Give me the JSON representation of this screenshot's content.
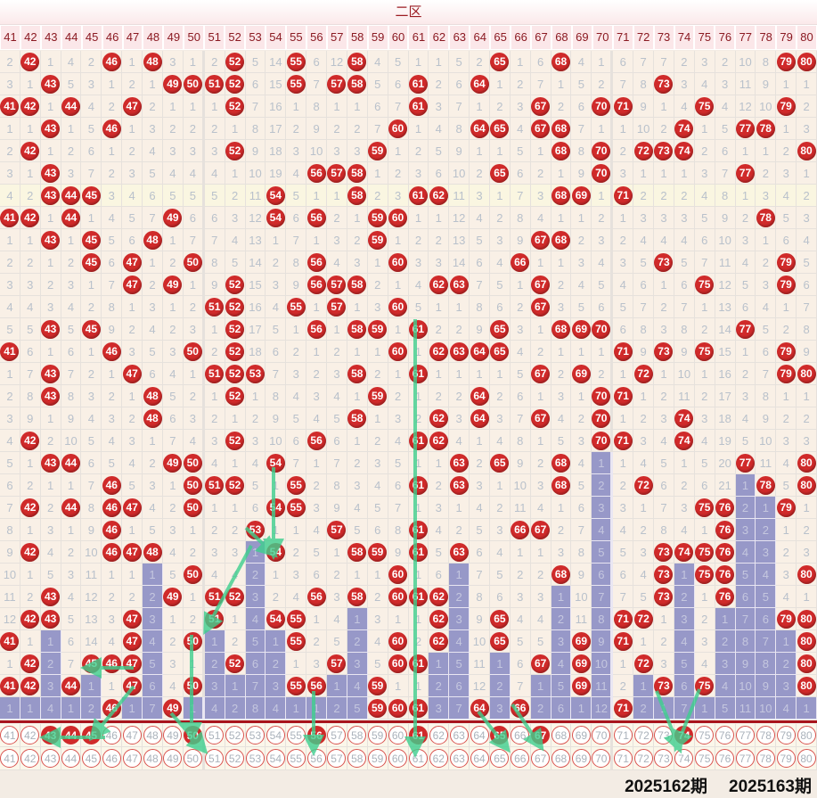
{
  "zone_title": "二区",
  "columns": [
    41,
    42,
    43,
    44,
    45,
    46,
    47,
    48,
    49,
    50,
    51,
    52,
    53,
    54,
    55,
    56,
    57,
    58,
    59,
    60,
    61,
    62,
    63,
    64,
    65,
    66,
    67,
    68,
    69,
    70,
    71,
    72,
    73,
    74,
    75,
    76,
    77,
    78,
    79,
    80
  ],
  "highlight_row": 7,
  "rows": [
    [
      2,
      42,
      1,
      4,
      2,
      46,
      1,
      48,
      3,
      1,
      2,
      52,
      5,
      14,
      55,
      6,
      12,
      58,
      4,
      5,
      1,
      1,
      5,
      2,
      65,
      1,
      6,
      68,
      4,
      1,
      6,
      7,
      7,
      2,
      3,
      2,
      10,
      8,
      79,
      80
    ],
    [
      3,
      1,
      43,
      5,
      3,
      1,
      2,
      1,
      49,
      50,
      51,
      52,
      6,
      15,
      55,
      7,
      57,
      58,
      5,
      6,
      61,
      2,
      6,
      64,
      1,
      2,
      7,
      1,
      5,
      2,
      7,
      8,
      73,
      3,
      4,
      3,
      11,
      9,
      1,
      1
    ],
    [
      41,
      42,
      1,
      44,
      4,
      2,
      47,
      2,
      1,
      1,
      1,
      52,
      7,
      16,
      1,
      8,
      1,
      1,
      6,
      7,
      61,
      3,
      7,
      1,
      2,
      3,
      67,
      2,
      6,
      70,
      71,
      9,
      1,
      4,
      75,
      4,
      12,
      10,
      79,
      2
    ],
    [
      1,
      1,
      43,
      1,
      5,
      46,
      1,
      3,
      2,
      2,
      2,
      1,
      8,
      17,
      2,
      9,
      2,
      2,
      7,
      60,
      1,
      4,
      8,
      64,
      65,
      4,
      67,
      68,
      7,
      1,
      1,
      10,
      2,
      74,
      1,
      5,
      77,
      78,
      1,
      3
    ],
    [
      2,
      42,
      1,
      2,
      6,
      1,
      2,
      4,
      3,
      3,
      3,
      52,
      9,
      18,
      3,
      10,
      3,
      3,
      59,
      1,
      2,
      5,
      9,
      1,
      1,
      5,
      1,
      68,
      8,
      70,
      2,
      72,
      73,
      74,
      2,
      6,
      1,
      1,
      2,
      80
    ],
    [
      3,
      1,
      43,
      3,
      7,
      2,
      3,
      5,
      4,
      4,
      4,
      1,
      10,
      19,
      4,
      56,
      57,
      58,
      1,
      2,
      3,
      6,
      10,
      2,
      65,
      6,
      2,
      1,
      9,
      70,
      3,
      1,
      1,
      1,
      3,
      7,
      77,
      2,
      3,
      1
    ],
    [
      4,
      2,
      43,
      44,
      45,
      3,
      4,
      6,
      5,
      5,
      5,
      2,
      11,
      54,
      5,
      1,
      1,
      58,
      2,
      3,
      61,
      62,
      11,
      3,
      1,
      7,
      3,
      68,
      69,
      1,
      71,
      2,
      2,
      2,
      4,
      8,
      1,
      3,
      4,
      2
    ],
    [
      41,
      42,
      1,
      44,
      1,
      4,
      5,
      7,
      49,
      6,
      6,
      3,
      12,
      54,
      6,
      56,
      2,
      1,
      59,
      60,
      1,
      1,
      12,
      4,
      2,
      8,
      4,
      1,
      1,
      2,
      1,
      3,
      3,
      3,
      5,
      9,
      2,
      78,
      5,
      3
    ],
    [
      1,
      1,
      43,
      1,
      45,
      5,
      6,
      48,
      1,
      7,
      7,
      4,
      13,
      1,
      7,
      1,
      3,
      2,
      59,
      1,
      2,
      2,
      13,
      5,
      3,
      9,
      67,
      68,
      2,
      3,
      2,
      4,
      4,
      4,
      6,
      10,
      3,
      1,
      6,
      4
    ],
    [
      2,
      2,
      1,
      2,
      45,
      6,
      47,
      1,
      2,
      50,
      8,
      5,
      14,
      2,
      8,
      56,
      4,
      3,
      1,
      60,
      3,
      3,
      14,
      6,
      4,
      66,
      1,
      1,
      3,
      4,
      3,
      5,
      73,
      5,
      7,
      11,
      4,
      2,
      79,
      5
    ],
    [
      3,
      3,
      2,
      3,
      1,
      7,
      47,
      2,
      49,
      1,
      9,
      52,
      15,
      3,
      9,
      56,
      57,
      58,
      2,
      1,
      4,
      62,
      63,
      7,
      5,
      1,
      67,
      2,
      4,
      5,
      4,
      6,
      1,
      6,
      75,
      12,
      5,
      3,
      79,
      6
    ],
    [
      4,
      4,
      3,
      4,
      2,
      8,
      1,
      3,
      1,
      2,
      51,
      52,
      16,
      4,
      55,
      1,
      57,
      1,
      3,
      60,
      5,
      1,
      1,
      8,
      6,
      2,
      67,
      3,
      5,
      6,
      5,
      7,
      2,
      7,
      1,
      13,
      6,
      4,
      1,
      7
    ],
    [
      5,
      5,
      43,
      5,
      45,
      9,
      2,
      4,
      2,
      3,
      1,
      52,
      17,
      5,
      1,
      56,
      1,
      58,
      59,
      1,
      61,
      2,
      2,
      9,
      65,
      3,
      1,
      68,
      69,
      70,
      6,
      8,
      3,
      8,
      2,
      14,
      77,
      5,
      2,
      8
    ],
    [
      41,
      6,
      1,
      6,
      1,
      46,
      3,
      5,
      3,
      50,
      2,
      52,
      18,
      6,
      2,
      1,
      2,
      1,
      1,
      60,
      1,
      62,
      63,
      64,
      65,
      4,
      2,
      1,
      1,
      1,
      71,
      9,
      73,
      9,
      75,
      15,
      1,
      6,
      79,
      9
    ],
    [
      1,
      7,
      43,
      7,
      2,
      1,
      47,
      6,
      4,
      1,
      51,
      52,
      53,
      7,
      3,
      2,
      3,
      58,
      2,
      1,
      61,
      1,
      1,
      1,
      1,
      5,
      67,
      2,
      69,
      2,
      1,
      72,
      1,
      10,
      1,
      16,
      2,
      7,
      79,
      80
    ],
    [
      2,
      8,
      43,
      8,
      3,
      2,
      1,
      48,
      5,
      2,
      1,
      52,
      1,
      8,
      4,
      3,
      4,
      1,
      59,
      2,
      1,
      2,
      2,
      64,
      2,
      6,
      1,
      3,
      1,
      70,
      71,
      1,
      2,
      11,
      2,
      17,
      3,
      8,
      1,
      1
    ],
    [
      3,
      9,
      1,
      9,
      4,
      3,
      2,
      48,
      6,
      3,
      2,
      1,
      2,
      9,
      5,
      4,
      5,
      58,
      1,
      3,
      2,
      62,
      3,
      64,
      3,
      7,
      67,
      4,
      2,
      70,
      1,
      2,
      3,
      74,
      3,
      18,
      4,
      9,
      2,
      2
    ],
    [
      4,
      42,
      2,
      10,
      5,
      4,
      3,
      1,
      7,
      4,
      3,
      52,
      3,
      10,
      6,
      56,
      6,
      1,
      2,
      4,
      61,
      62,
      4,
      1,
      4,
      8,
      1,
      5,
      3,
      70,
      71,
      3,
      4,
      74,
      4,
      19,
      5,
      10,
      3,
      3
    ],
    [
      5,
      1,
      43,
      44,
      6,
      5,
      4,
      2,
      49,
      50,
      4,
      1,
      4,
      54,
      7,
      1,
      7,
      2,
      3,
      5,
      1,
      1,
      63,
      2,
      65,
      9,
      2,
      68,
      4,
      1,
      1,
      4,
      5,
      1,
      5,
      20,
      77,
      11,
      4,
      80
    ],
    [
      6,
      2,
      1,
      1,
      7,
      46,
      5,
      3,
      1,
      50,
      51,
      52,
      5,
      1,
      55,
      2,
      8,
      3,
      4,
      6,
      61,
      2,
      63,
      3,
      1,
      10,
      3,
      68,
      5,
      2,
      2,
      72,
      6,
      2,
      6,
      21,
      1,
      78,
      5,
      80
    ],
    [
      7,
      42,
      2,
      44,
      8,
      46,
      47,
      4,
      2,
      50,
      1,
      1,
      6,
      54,
      55,
      3,
      9,
      4,
      5,
      7,
      1,
      3,
      1,
      4,
      2,
      11,
      4,
      1,
      6,
      3,
      3,
      1,
      7,
      3,
      75,
      76,
      2,
      1,
      79,
      1
    ],
    [
      8,
      1,
      3,
      1,
      9,
      46,
      1,
      5,
      3,
      1,
      2,
      2,
      53,
      1,
      1,
      4,
      57,
      5,
      6,
      8,
      61,
      4,
      2,
      5,
      3,
      66,
      67,
      2,
      7,
      4,
      4,
      2,
      8,
      4,
      1,
      76,
      3,
      2,
      1,
      2
    ],
    [
      9,
      42,
      4,
      2,
      10,
      46,
      47,
      48,
      4,
      2,
      3,
      3,
      1,
      54,
      2,
      5,
      1,
      58,
      59,
      9,
      61,
      5,
      63,
      6,
      4,
      1,
      1,
      3,
      8,
      5,
      5,
      3,
      73,
      74,
      75,
      76,
      4,
      3,
      2,
      3
    ],
    [
      10,
      1,
      5,
      3,
      11,
      1,
      1,
      1,
      5,
      50,
      4,
      4,
      2,
      1,
      3,
      6,
      2,
      1,
      1,
      60,
      1,
      6,
      1,
      7,
      5,
      2,
      2,
      68,
      9,
      6,
      6,
      4,
      73,
      1,
      75,
      76,
      5,
      4,
      3,
      80
    ],
    [
      11,
      2,
      43,
      4,
      12,
      2,
      2,
      2,
      49,
      1,
      51,
      52,
      3,
      2,
      4,
      56,
      3,
      58,
      2,
      60,
      61,
      62,
      2,
      8,
      6,
      3,
      3,
      1,
      10,
      7,
      7,
      5,
      73,
      2,
      1,
      76,
      6,
      5,
      4,
      1
    ],
    [
      12,
      42,
      43,
      5,
      13,
      3,
      47,
      3,
      1,
      2,
      51,
      1,
      4,
      54,
      55,
      1,
      4,
      1,
      3,
      1,
      1,
      62,
      3,
      9,
      65,
      4,
      4,
      2,
      11,
      8,
      71,
      72,
      1,
      3,
      2,
      1,
      7,
      6,
      79,
      80
    ],
    [
      41,
      1,
      1,
      6,
      14,
      4,
      47,
      4,
      2,
      50,
      1,
      2,
      5,
      1,
      55,
      2,
      5,
      2,
      4,
      60,
      2,
      62,
      4,
      10,
      65,
      5,
      5,
      3,
      69,
      9,
      71,
      1,
      2,
      4,
      3,
      2,
      8,
      7,
      1,
      80
    ],
    [
      1,
      42,
      2,
      7,
      45,
      46,
      47,
      5,
      3,
      1,
      2,
      52,
      6,
      2,
      1,
      3,
      57,
      3,
      5,
      60,
      61,
      1,
      5,
      11,
      1,
      6,
      67,
      4,
      69,
      10,
      1,
      72,
      3,
      5,
      4,
      3,
      9,
      8,
      2,
      80
    ],
    [
      41,
      42,
      3,
      44,
      1,
      1,
      47,
      6,
      4,
      50,
      3,
      1,
      7,
      3,
      55,
      56,
      1,
      4,
      59,
      1,
      1,
      2,
      6,
      12,
      2,
      7,
      1,
      5,
      69,
      11,
      2,
      1,
      73,
      6,
      75,
      4,
      10,
      9,
      3,
      80
    ],
    [
      1,
      1,
      4,
      1,
      2,
      46,
      1,
      7,
      49,
      1,
      4,
      2,
      8,
      4,
      1,
      1,
      2,
      5,
      59,
      60,
      61,
      3,
      7,
      64,
      3,
      66,
      2,
      6,
      1,
      12,
      71,
      2,
      1,
      7,
      1,
      5,
      11,
      10,
      4,
      1
    ]
  ],
  "predicted_hits": [
    43,
    44,
    45,
    50,
    56,
    61,
    65,
    67,
    74
  ],
  "periods": {
    "current": "2025162期",
    "next": "2025163期"
  },
  "colors": {
    "hit": "#d02a2a",
    "miss_streak": "#9798c8",
    "trend_arrow": "#3ecf8e",
    "divider": "#a8141c"
  }
}
